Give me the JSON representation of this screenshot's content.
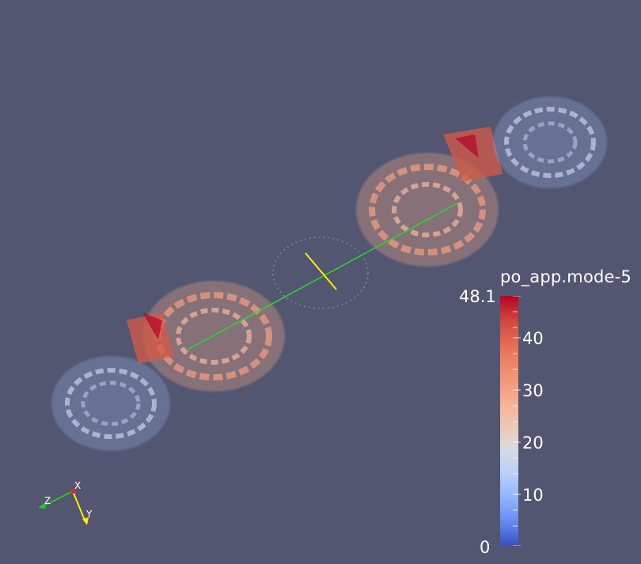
{
  "viewport": {
    "background": "#525670"
  },
  "scalar_bar": {
    "title": "po_app.mode-5",
    "max_label": "48.1",
    "min_label": "0",
    "labels": [
      "40",
      "30",
      "20",
      "10"
    ],
    "colors": {
      "high": "#b40426",
      "mid": "#dddddd",
      "low": "#3b4cc0"
    }
  },
  "orientation_axes": {
    "x": "X",
    "y": "Y",
    "z": "Z"
  },
  "icons": {
    "orientation": "axes-triad-icon"
  }
}
